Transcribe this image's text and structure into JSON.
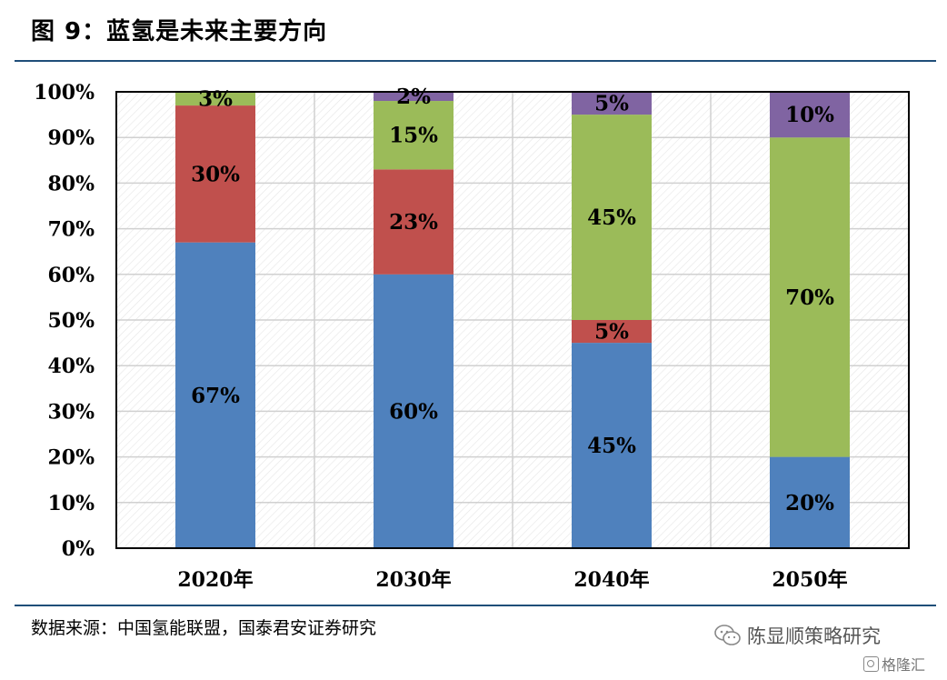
{
  "title": "图 9：蓝氢是未来主要方向",
  "source": "数据来源：中国氢能联盟，国泰君安证券研究",
  "watermark": "陈显顺策略研究",
  "watermark_small": "格隆汇",
  "chart_data": {
    "type": "bar",
    "stacked": true,
    "categories": [
      "2020年",
      "2030年",
      "2040年",
      "2050年"
    ],
    "series": [
      {
        "color": "#4f81bd",
        "values": [
          67,
          60,
          45,
          20
        ],
        "labels": [
          "67%",
          "60%",
          "45%",
          "20%"
        ]
      },
      {
        "color": "#c0504d",
        "values": [
          30,
          23,
          5,
          0
        ],
        "labels": [
          "30%",
          "23%",
          "5%",
          ""
        ]
      },
      {
        "color": "#9bbb59",
        "values": [
          3,
          15,
          45,
          70
        ],
        "labels": [
          "3%",
          "15%",
          "45%",
          "70%"
        ]
      },
      {
        "color": "#8064a2",
        "values": [
          0,
          2,
          5,
          10
        ],
        "labels": [
          "",
          "2%",
          "5%",
          "10%"
        ]
      }
    ],
    "ylim": [
      0,
      100
    ],
    "yticks": [
      "0%",
      "10%",
      "20%",
      "30%",
      "40%",
      "50%",
      "60%",
      "70%",
      "80%",
      "90%",
      "100%"
    ],
    "grid": true,
    "legend": "none"
  }
}
